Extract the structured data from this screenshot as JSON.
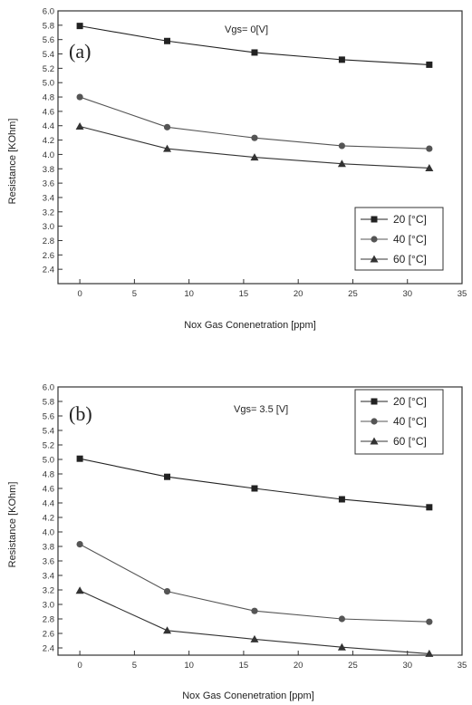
{
  "chart_data": [
    {
      "type": "line",
      "panel_label": "(a)",
      "annotation": "Vgs= 0[V]",
      "xlabel": "Nox Gas Conenetration [ppm]",
      "ylabel": "Resistance [KOhm]",
      "xlim": [
        -2,
        35
      ],
      "ylim": [
        2.2,
        6.0
      ],
      "x_ticks": [
        "0",
        "5",
        "10",
        "15",
        "20",
        "25",
        "30",
        "35"
      ],
      "y_ticks": [
        "2.4",
        "2.6",
        "2.8",
        "3.0",
        "3.2",
        "3.4",
        "3.6",
        "3.8",
        "4.0",
        "4.2",
        "4.4",
        "4.6",
        "4.8",
        "5.0",
        "5.2",
        "5.4",
        "5.6",
        "5.8",
        "6.0"
      ],
      "grid": false,
      "legend_position": "bottom-right",
      "x": [
        0,
        8,
        16,
        24,
        32
      ],
      "series": [
        {
          "name": "20 [°C]",
          "marker": "square",
          "values": [
            5.79,
            5.58,
            5.42,
            5.32,
            5.25
          ]
        },
        {
          "name": "40 [°C]",
          "marker": "circle",
          "values": [
            4.8,
            4.38,
            4.23,
            4.12,
            4.08
          ]
        },
        {
          "name": "60 [°C]",
          "marker": "triangle",
          "values": [
            4.39,
            4.08,
            3.96,
            3.87,
            3.81
          ]
        }
      ]
    },
    {
      "type": "line",
      "panel_label": "(b)",
      "annotation": "Vgs= 3.5 [V]",
      "xlabel": "Nox Gas Conenetration [ppm]",
      "ylabel": "Resistance [KOhm]",
      "xlim": [
        -2,
        35
      ],
      "ylim": [
        2.3,
        6.0
      ],
      "x_ticks": [
        "0",
        "5",
        "10",
        "15",
        "20",
        "25",
        "30",
        "35"
      ],
      "y_ticks": [
        "2.4",
        "2.6",
        "2.8",
        "3.0",
        "3.2",
        "3.4",
        "3.6",
        "3.8",
        "4.0",
        "4.2",
        "4.4",
        "4.6",
        "4.8",
        "5.0",
        "5.2",
        "5.4",
        "5.6",
        "5.8",
        "6.0"
      ],
      "grid": false,
      "legend_position": "top-right",
      "x": [
        0,
        8,
        16,
        24,
        32
      ],
      "series": [
        {
          "name": "20 [°C]",
          "marker": "square",
          "values": [
            5.01,
            4.76,
            4.6,
            4.45,
            4.34
          ]
        },
        {
          "name": "40 [°C]",
          "marker": "circle",
          "values": [
            3.83,
            3.18,
            2.91,
            2.8,
            2.76
          ]
        },
        {
          "name": "60 [°C]",
          "marker": "triangle",
          "values": [
            3.19,
            2.64,
            2.52,
            2.41,
            2.32
          ]
        }
      ]
    }
  ],
  "colors": {
    "series": [
      "#222222",
      "#555555",
      "#333333"
    ]
  }
}
